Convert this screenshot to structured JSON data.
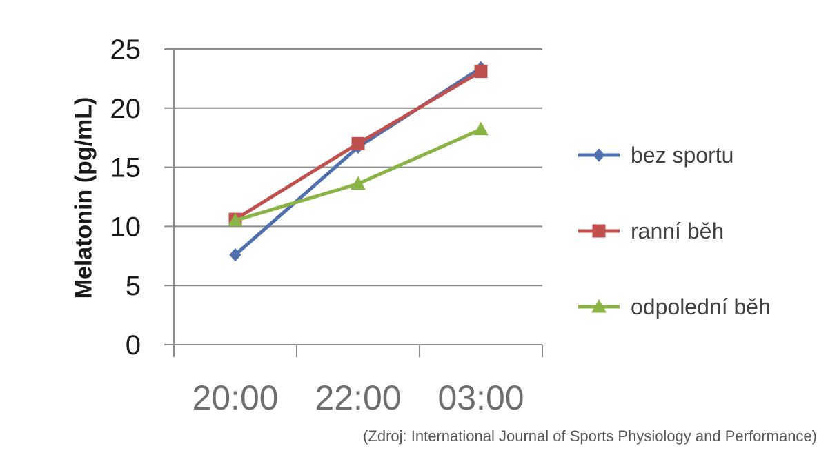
{
  "chart_data": {
    "type": "line",
    "categories": [
      "20:00",
      "22:00",
      "03:00"
    ],
    "ylabel": "Melatonin (pg/mL)",
    "xlabel": "",
    "ylim": [
      0,
      25
    ],
    "yticks": [
      0,
      5,
      10,
      15,
      20,
      25
    ],
    "grid": true,
    "legend_position": "right",
    "series": [
      {
        "name": "bez sportu",
        "values": [
          7.6,
          16.7,
          23.4
        ],
        "color": "#4f6fae",
        "marker": "diamond"
      },
      {
        "name": "ranní běh",
        "values": [
          10.6,
          17.0,
          23.1
        ],
        "color": "#c0504d",
        "marker": "square"
      },
      {
        "name": "odpolední běh",
        "values": [
          10.5,
          13.6,
          18.2
        ],
        "color": "#8ab446",
        "marker": "triangle"
      }
    ]
  },
  "source": "(Zdroj: International Journal of Sports Physiology and Performance)"
}
